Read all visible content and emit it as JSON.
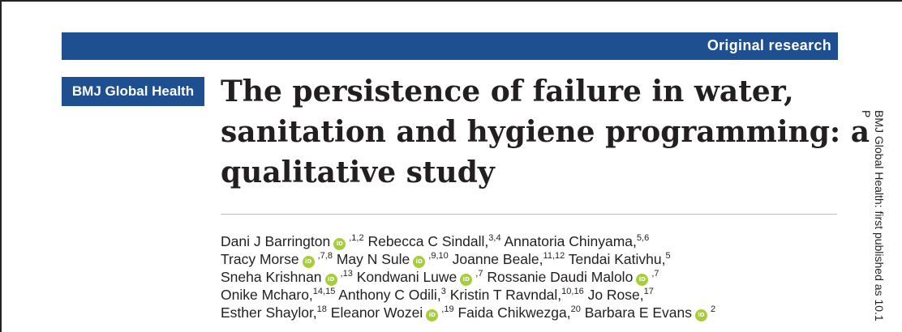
{
  "banner": {
    "label": "Original research"
  },
  "journal": {
    "name": "BMJ Global Health"
  },
  "article": {
    "title_lines": [
      "The persistence of failure in water,",
      "sanitation and hygiene programming: a",
      "qualitative study"
    ]
  },
  "authors": {
    "lines": [
      [
        {
          "name": "Dani J Barrington",
          "orcid": true,
          "sup": ",1,2"
        },
        {
          "name": "Rebecca C Sindall,",
          "sup": "3,4"
        },
        {
          "name": "Annatoria Chinyama,",
          "sup": "5,6"
        }
      ],
      [
        {
          "name": "Tracy Morse",
          "orcid": true,
          "sup": ",7,8"
        },
        {
          "name": "May N Sule",
          "orcid": true,
          "sup": ",9,10"
        },
        {
          "name": "Joanne Beale,",
          "sup": "11,12"
        },
        {
          "name": "Tendai Kativhu,",
          "sup": "5"
        }
      ],
      [
        {
          "name": "Sneha Krishnan",
          "orcid": true,
          "sup": ",13"
        },
        {
          "name": "Kondwani Luwe",
          "orcid": true,
          "sup": ",7"
        },
        {
          "name": "Rossanie Daudi Malolo",
          "orcid": true,
          "sup": ",7"
        }
      ],
      [
        {
          "name": "Onike Mcharo,",
          "sup": "14,15"
        },
        {
          "name": "Anthony C Odili,",
          "sup": "3"
        },
        {
          "name": "Kristin T Ravndal,",
          "sup": "10,16"
        },
        {
          "name": "Jo Rose,",
          "sup": "17"
        }
      ],
      [
        {
          "name": "Esther Shaylor,",
          "sup": "18"
        },
        {
          "name": "Eleanor Wozei",
          "orcid": true,
          "sup": ",19"
        },
        {
          "name": "Faida Chikwezga,",
          "sup": "20"
        },
        {
          "name": "Barbara E Evans",
          "orcid": true,
          "sup": "2"
        }
      ]
    ],
    "orcid_glyph": "iD"
  },
  "side_note": {
    "line1": "BMJ Global Health: first published as 10.1",
    "line2": "P"
  },
  "colors": {
    "brand_blue": "#1d4f91",
    "orcid_green": "#a6ce39",
    "title_text": "#231f20"
  }
}
